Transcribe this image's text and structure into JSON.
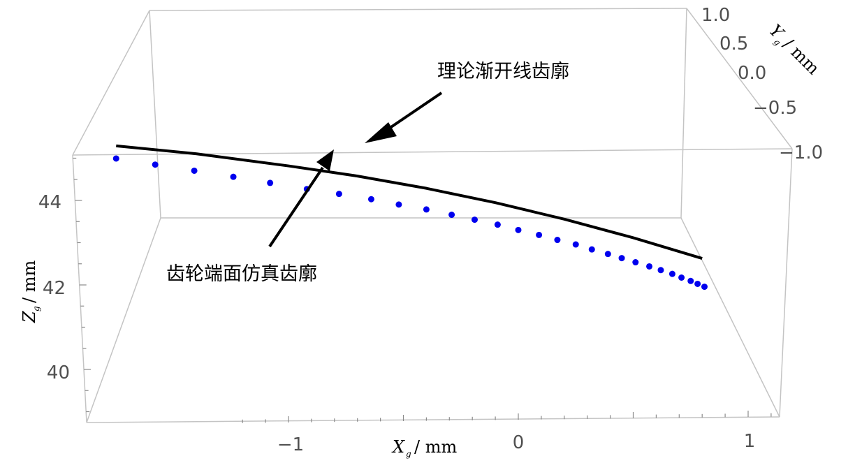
{
  "chart_data": {
    "type": "scatter",
    "x_axis": {
      "label": "X",
      "subscript": "g",
      "unit": "/ mm",
      "ticks": [
        "−1",
        "0",
        "1"
      ],
      "tick_values": [
        -1,
        0,
        1
      ]
    },
    "y_axis": {
      "label": "Y",
      "subscript": "g",
      "unit": "/ mm",
      "ticks": [
        "1.0",
        "0.5",
        "0.0",
        "−0.5",
        "−1.0"
      ],
      "tick_values": [
        1.0,
        0.5,
        0.0,
        -0.5,
        -1.0
      ]
    },
    "z_axis": {
      "label": "Z",
      "subscript": "g",
      "unit": "/ mm",
      "ticks": [
        "44",
        "42",
        "40"
      ],
      "tick_values": [
        44,
        42,
        40
      ]
    },
    "annotations": {
      "theory": "理论渐开线齿廓",
      "simulated": "齿轮端面仿真齿廓"
    },
    "series": [
      {
        "kind": "line",
        "color": "#000000",
        "x": [
          -1.75,
          -1.4,
          -1.0,
          -0.7,
          -0.4,
          -0.1,
          0.2,
          0.5,
          0.8
        ],
        "z": [
          45.35,
          45.15,
          44.85,
          44.6,
          44.3,
          43.95,
          43.55,
          43.1,
          42.6
        ]
      },
      {
        "kind": "scatter",
        "color": "#0000ee",
        "x": [
          -1.75,
          -1.58,
          -1.41,
          -1.24,
          -1.08,
          -0.92,
          -0.78,
          -0.64,
          -0.52,
          -0.4,
          -0.29,
          -0.19,
          -0.09,
          0.0,
          0.09,
          0.17,
          0.25,
          0.32,
          0.39,
          0.45,
          0.51,
          0.57,
          0.62,
          0.67,
          0.71,
          0.75,
          0.78,
          0.81
        ],
        "z": [
          45.05,
          44.9,
          44.75,
          44.6,
          44.45,
          44.3,
          44.18,
          44.05,
          43.92,
          43.8,
          43.67,
          43.55,
          43.43,
          43.3,
          43.18,
          43.06,
          42.95,
          42.83,
          42.72,
          42.62,
          42.52,
          42.42,
          42.33,
          42.24,
          42.15,
          42.07,
          42.0,
          41.93
        ]
      }
    ]
  }
}
